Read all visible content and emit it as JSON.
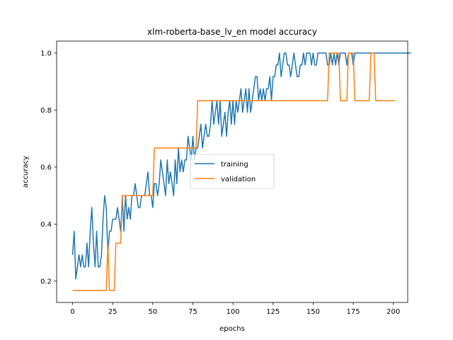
{
  "chart_data": {
    "type": "line",
    "title": "xlm-roberta-base_lv_en model accuracy",
    "xlabel": "epochs",
    "ylabel": "accuracy",
    "xlim": [
      -9.95,
      208.95
    ],
    "ylim": [
      0.125,
      1.042
    ],
    "xticks": [
      0,
      25,
      50,
      75,
      100,
      125,
      150,
      175,
      200
    ],
    "yticks": [
      0.2,
      0.4,
      0.6,
      0.8,
      1.0
    ],
    "xtick_labels": [
      "0",
      "25",
      "50",
      "75",
      "100",
      "125",
      "150",
      "175",
      "200"
    ],
    "ytick_labels": [
      "0.2",
      "0.4",
      "0.6",
      "0.8",
      "1.0"
    ],
    "legend_position": "center-right",
    "grid": false,
    "series": [
      {
        "name": "training",
        "color": "#1f77b4",
        "values": [
          0.292,
          0.375,
          0.208,
          0.25,
          0.292,
          0.25,
          0.292,
          0.25,
          0.25,
          0.333,
          0.25,
          0.375,
          0.458,
          0.333,
          0.25,
          0.375,
          0.25,
          0.25,
          0.292,
          0.417,
          0.5,
          0.458,
          0.292,
          0.375,
          0.375,
          0.417,
          0.417,
          0.417,
          0.458,
          0.417,
          0.375,
          0.5,
          0.375,
          0.5,
          0.417,
          0.458,
          0.417,
          0.5,
          0.5,
          0.542,
          0.5,
          0.458,
          0.458,
          0.5,
          0.5,
          0.5,
          0.542,
          0.583,
          0.5,
          0.5,
          0.458,
          0.542,
          0.542,
          0.5,
          0.542,
          0.625,
          0.583,
          0.542,
          0.5,
          0.625,
          0.542,
          0.583,
          0.542,
          0.5,
          0.625,
          0.542,
          0.667,
          0.583,
          0.625,
          0.583,
          0.625,
          0.625,
          0.708,
          0.667,
          0.625,
          0.708,
          0.625,
          0.667,
          0.667,
          0.708,
          0.75,
          0.667,
          0.708,
          0.75,
          0.708,
          0.708,
          0.75,
          0.833,
          0.75,
          0.792,
          0.833,
          0.75,
          0.833,
          0.708,
          0.75,
          0.792,
          0.708,
          0.792,
          0.833,
          0.75,
          0.833,
          0.75,
          0.833,
          0.792,
          0.833,
          0.875,
          0.792,
          0.833,
          0.875,
          0.792,
          0.875,
          0.792,
          0.833,
          0.875,
          0.917,
          0.917,
          0.833,
          0.875,
          0.833,
          0.875,
          0.833,
          0.875,
          0.875,
          0.917,
          0.833,
          0.917,
          0.917,
          0.958,
          0.958,
          1.0,
          0.917,
          0.958,
          1.0,
          1.0,
          0.958,
          0.958,
          0.917,
          0.958,
          1.0,
          0.958,
          0.917,
          0.917,
          0.958,
          0.958,
          1.0,
          0.958,
          1.0,
          1.0,
          1.0,
          0.958,
          1.0,
          0.958,
          0.958,
          1.0,
          1.0,
          1.0,
          1.0,
          1.0,
          1.0,
          0.958,
          0.958,
          1.0,
          0.958,
          1.0,
          0.958,
          1.0,
          0.958,
          1.0,
          1.0,
          1.0,
          1.0,
          0.958,
          1.0,
          1.0,
          1.0,
          0.958,
          1.0,
          1.0,
          1.0,
          1.0,
          1.0,
          1.0,
          1.0,
          1.0,
          1.0,
          1.0,
          1.0,
          1.0,
          1.0,
          1.0,
          1.0,
          1.0,
          1.0,
          1.0,
          1.0,
          1.0,
          1.0,
          1.0,
          1.0,
          1.0,
          1.0,
          1.0,
          1.0,
          1.0,
          1.0,
          1.0,
          1.0,
          1.0,
          1.0,
          1.0,
          1.0,
          1.0
        ]
      },
      {
        "name": "validation",
        "color": "#ff7f0e",
        "values": [
          0.167,
          0.167,
          0.167,
          0.167,
          0.167,
          0.167,
          0.167,
          0.167,
          0.167,
          0.167,
          0.167,
          0.167,
          0.167,
          0.167,
          0.167,
          0.167,
          0.167,
          0.167,
          0.167,
          0.167,
          0.167,
          0.167,
          0.333,
          0.167,
          0.167,
          0.167,
          0.167,
          0.333,
          0.333,
          0.333,
          0.333,
          0.5,
          0.5,
          0.5,
          0.5,
          0.5,
          0.5,
          0.5,
          0.5,
          0.5,
          0.5,
          0.5,
          0.5,
          0.5,
          0.5,
          0.5,
          0.5,
          0.5,
          0.5,
          0.5,
          0.5,
          0.667,
          0.667,
          0.667,
          0.667,
          0.667,
          0.667,
          0.667,
          0.667,
          0.667,
          0.667,
          0.667,
          0.667,
          0.667,
          0.667,
          0.667,
          0.667,
          0.667,
          0.667,
          0.667,
          0.667,
          0.667,
          0.667,
          0.667,
          0.667,
          0.667,
          0.667,
          0.667,
          0.833,
          0.833,
          0.833,
          0.833,
          0.833,
          0.833,
          0.833,
          0.833,
          0.833,
          0.833,
          0.833,
          0.833,
          0.833,
          0.833,
          0.833,
          0.833,
          0.833,
          0.833,
          0.833,
          0.833,
          0.833,
          0.833,
          0.833,
          0.833,
          0.833,
          0.833,
          0.833,
          0.833,
          0.833,
          0.833,
          0.833,
          0.833,
          0.833,
          0.833,
          0.833,
          0.833,
          0.833,
          0.833,
          0.833,
          0.833,
          0.833,
          0.833,
          0.833,
          0.833,
          0.833,
          0.833,
          0.833,
          0.833,
          0.833,
          0.833,
          0.833,
          0.833,
          0.833,
          0.833,
          0.833,
          0.833,
          0.833,
          0.833,
          0.833,
          0.833,
          0.833,
          0.833,
          0.833,
          0.833,
          0.833,
          0.833,
          0.833,
          0.833,
          0.833,
          0.833,
          0.833,
          0.833,
          0.833,
          0.833,
          0.833,
          0.833,
          0.833,
          0.833,
          0.833,
          0.833,
          0.833,
          0.833,
          1.0,
          1.0,
          1.0,
          1.0,
          1.0,
          1.0,
          1.0,
          0.833,
          0.833,
          0.833,
          0.833,
          0.833,
          1.0,
          1.0,
          1.0,
          1.0,
          0.833,
          0.833,
          0.833,
          0.833,
          0.833,
          0.833,
          0.833,
          0.833,
          0.833,
          0.833,
          1.0,
          1.0,
          1.0,
          0.833,
          0.833,
          0.833,
          0.833,
          0.833,
          0.833,
          0.833,
          0.833,
          0.833,
          0.833,
          0.833,
          0.833,
          0.833
        ]
      }
    ]
  }
}
